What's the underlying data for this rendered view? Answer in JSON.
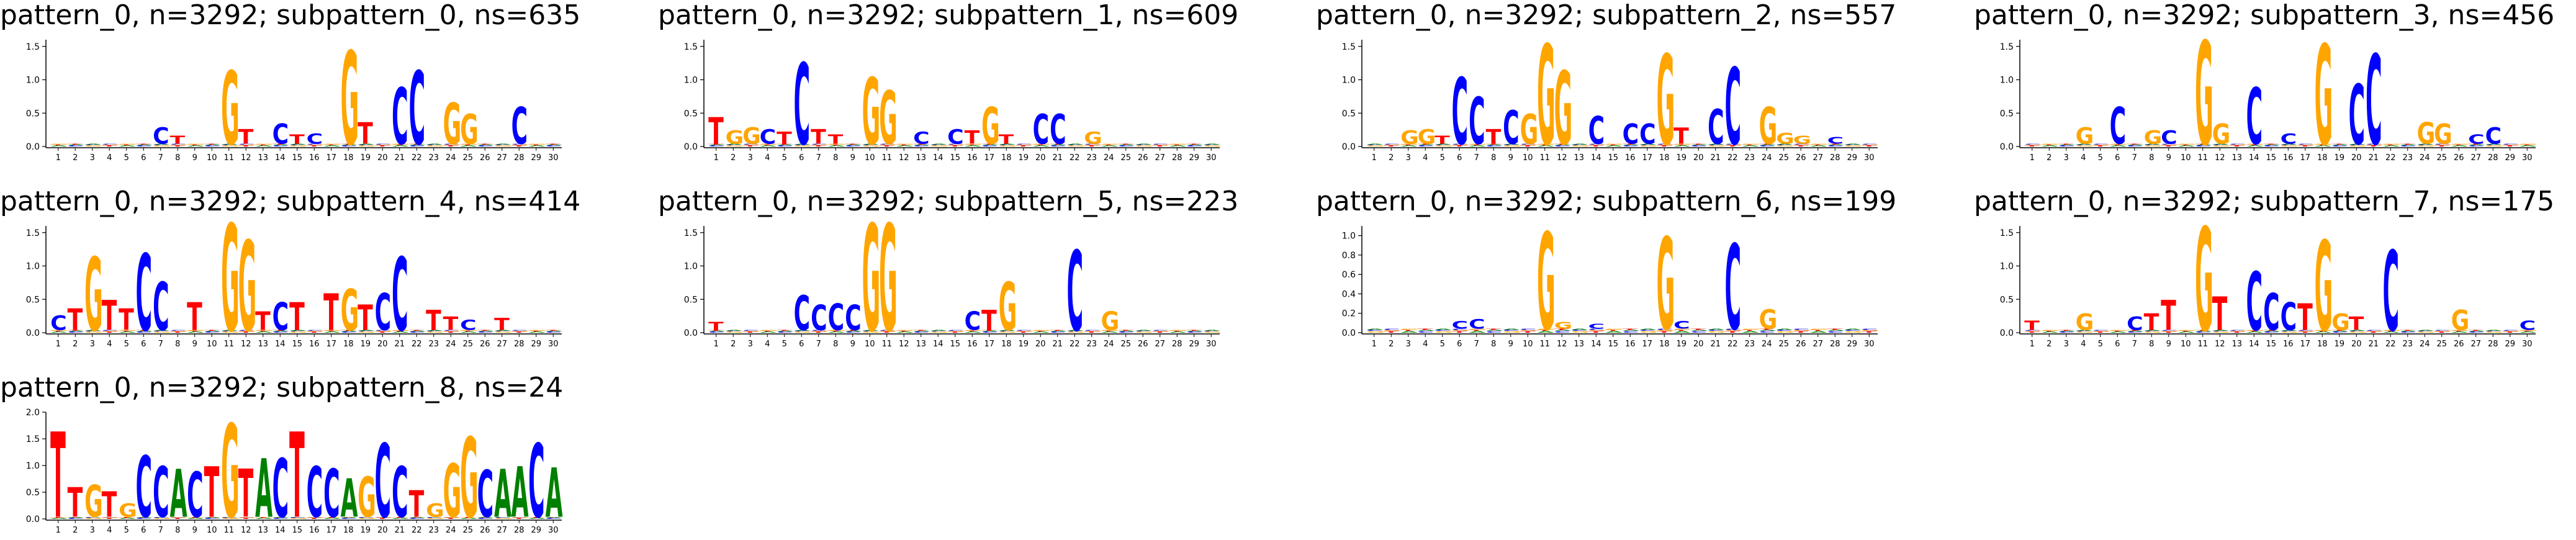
{
  "colors": {
    "A": "#008000",
    "C": "#0000ff",
    "G": "#ffa500",
    "T": "#ff0000"
  },
  "x_tick_labels": [
    "1",
    "2",
    "3",
    "4",
    "5",
    "6",
    "7",
    "8",
    "9",
    "10",
    "11",
    "12",
    "13",
    "14",
    "15",
    "16",
    "17",
    "18",
    "19",
    "20",
    "21",
    "22",
    "23",
    "24",
    "25",
    "26",
    "27",
    "28",
    "29",
    "30"
  ],
  "chart_data": [
    {
      "type": "sequence-logo",
      "title": "pattern_0, n=3292; subpattern_0, ns=635",
      "ylim": [
        0,
        1.6
      ],
      "yticks": [
        "0.0",
        "0.5",
        "1.0",
        "1.5"
      ],
      "letters": [
        null,
        null,
        null,
        null,
        null,
        null,
        [
          "C",
          0.25
        ],
        [
          "T",
          0.12
        ],
        null,
        null,
        [
          "G",
          1.1
        ],
        [
          "T",
          0.22
        ],
        null,
        [
          "C",
          0.3
        ],
        [
          "T",
          0.14
        ],
        [
          "C",
          0.15
        ],
        null,
        [
          "G",
          1.4
        ],
        [
          "T",
          0.32
        ],
        null,
        [
          "C",
          0.85
        ],
        [
          "C",
          1.1
        ],
        null,
        [
          "G",
          0.62
        ],
        [
          "G",
          0.45
        ],
        null,
        null,
        [
          "C",
          0.55
        ],
        null,
        null
      ]
    },
    {
      "type": "sequence-logo",
      "title": "pattern_0, n=3292; subpattern_1, ns=609",
      "ylim": [
        0,
        1.6
      ],
      "yticks": [
        "0.0",
        "0.5",
        "1.0",
        "1.5"
      ],
      "letters": [
        [
          "T",
          0.4
        ],
        [
          "G",
          0.2
        ],
        [
          "G",
          0.25
        ],
        [
          "C",
          0.22
        ],
        [
          "T",
          0.18
        ],
        [
          "C",
          1.22
        ],
        [
          "T",
          0.22
        ],
        [
          "T",
          0.14
        ],
        null,
        [
          "G",
          1.0
        ],
        [
          "G",
          0.8
        ],
        null,
        [
          "C",
          0.18
        ],
        null,
        [
          "C",
          0.22
        ],
        [
          "T",
          0.2
        ],
        [
          "G",
          0.55
        ],
        [
          "T",
          0.14
        ],
        null,
        [
          "C",
          0.45
        ],
        [
          "C",
          0.45
        ],
        null,
        [
          "G",
          0.18
        ],
        null,
        null,
        null,
        null,
        null,
        null,
        null
      ]
    },
    {
      "type": "sequence-logo",
      "title": "pattern_0, n=3292; subpattern_2, ns=557",
      "ylim": [
        0,
        1.6
      ],
      "yticks": [
        "0.0",
        "0.5",
        "1.0",
        "1.5"
      ],
      "letters": [
        null,
        null,
        [
          "G",
          0.2
        ],
        [
          "G",
          0.22
        ],
        [
          "T",
          0.12
        ],
        [
          "C",
          1.0
        ],
        [
          "C",
          0.7
        ],
        [
          "T",
          0.22
        ],
        [
          "C",
          0.5
        ],
        [
          "G",
          0.45
        ],
        [
          "G",
          1.5
        ],
        [
          "G",
          1.1
        ],
        null,
        [
          "C",
          0.42
        ],
        null,
        [
          "C",
          0.3
        ],
        [
          "C",
          0.3
        ],
        [
          "G",
          1.35
        ],
        [
          "T",
          0.24
        ],
        null,
        [
          "C",
          0.52
        ],
        [
          "C",
          1.15
        ],
        null,
        [
          "G",
          0.55
        ],
        [
          "G",
          0.16
        ],
        [
          "G",
          0.12
        ],
        null,
        [
          "C",
          0.1
        ],
        null,
        null
      ]
    },
    {
      "type": "sequence-logo",
      "title": "pattern_0, n=3292; subpattern_3, ns=456",
      "ylim": [
        0,
        1.6
      ],
      "yticks": [
        "0.0",
        "0.5",
        "1.0",
        "1.5"
      ],
      "letters": [
        null,
        null,
        null,
        [
          "G",
          0.25
        ],
        null,
        [
          "C",
          0.55
        ],
        null,
        [
          "G",
          0.2
        ],
        [
          "C",
          0.2
        ],
        null,
        [
          "G",
          1.55
        ],
        [
          "G",
          0.3
        ],
        null,
        [
          "C",
          0.85
        ],
        null,
        [
          "C",
          0.15
        ],
        null,
        [
          "G",
          1.5
        ],
        null,
        [
          "C",
          0.9
        ],
        [
          "C",
          1.35
        ],
        null,
        null,
        [
          "G",
          0.32
        ],
        [
          "G",
          0.3
        ],
        null,
        [
          "C",
          0.14
        ],
        [
          "C",
          0.25
        ],
        null,
        null
      ]
    },
    {
      "type": "sequence-logo",
      "title": "pattern_0, n=3292; subpattern_4, ns=414",
      "ylim": [
        0,
        1.6
      ],
      "yticks": [
        "0.0",
        "0.5",
        "1.0",
        "1.5"
      ],
      "letters": [
        [
          "C",
          0.22
        ],
        [
          "T",
          0.32
        ],
        [
          "G",
          1.1
        ],
        [
          "T",
          0.45
        ],
        [
          "T",
          0.32
        ],
        [
          "C",
          1.15
        ],
        [
          "C",
          0.72
        ],
        null,
        [
          "T",
          0.42
        ],
        null,
        [
          "G",
          1.6
        ],
        [
          "G",
          1.35
        ],
        [
          "T",
          0.28
        ],
        [
          "C",
          0.42
        ],
        [
          "T",
          0.42
        ],
        null,
        [
          "T",
          0.55
        ],
        [
          "G",
          0.62
        ],
        [
          "T",
          0.38
        ],
        [
          "C",
          0.55
        ],
        [
          "C",
          1.1
        ],
        null,
        [
          "T",
          0.3
        ],
        [
          "T",
          0.2
        ],
        [
          "C",
          0.15
        ],
        null,
        [
          "T",
          0.18
        ],
        null,
        null,
        null
      ]
    },
    {
      "type": "sequence-logo",
      "title": "pattern_0, n=3292; subpattern_5, ns=223",
      "ylim": [
        0,
        1.6
      ],
      "yticks": [
        "0.0",
        "0.5",
        "1.0",
        "1.5"
      ],
      "letters": [
        [
          "T",
          0.12
        ],
        null,
        null,
        null,
        null,
        [
          "C",
          0.52
        ],
        [
          "C",
          0.38
        ],
        [
          "C",
          0.4
        ],
        [
          "C",
          0.38
        ],
        [
          "G",
          1.6
        ],
        [
          "G",
          1.6
        ],
        null,
        null,
        null,
        null,
        [
          "C",
          0.28
        ],
        [
          "T",
          0.3
        ],
        [
          "G",
          0.72
        ],
        null,
        null,
        null,
        [
          "C",
          1.2
        ],
        null,
        [
          "G",
          0.28
        ],
        null,
        null,
        null,
        null,
        null,
        null
      ]
    },
    {
      "type": "sequence-logo",
      "title": "pattern_0, n=3292; subpattern_6, ns=199",
      "ylim": [
        0,
        1.1
      ],
      "yticks": [
        "0.0",
        "0.2",
        "0.4",
        "0.6",
        "0.8",
        "1.0"
      ],
      "letters": [
        null,
        null,
        null,
        null,
        null,
        [
          "C",
          0.08
        ],
        [
          "C",
          0.1
        ],
        null,
        null,
        null,
        [
          "G",
          1.0
        ],
        [
          "G",
          0.07
        ],
        null,
        [
          "C",
          0.05
        ],
        null,
        null,
        null,
        [
          "G",
          0.95
        ],
        [
          "C",
          0.08
        ],
        null,
        null,
        [
          "C",
          0.88
        ],
        null,
        [
          "G",
          0.2
        ],
        null,
        null,
        null,
        null,
        null,
        null
      ]
    },
    {
      "type": "sequence-logo",
      "title": "pattern_0, n=3292; subpattern_7, ns=175",
      "ylim": [
        0,
        1.6
      ],
      "yticks": [
        "0.0",
        "0.5",
        "1.0",
        "1.5"
      ],
      "letters": [
        [
          "T",
          0.14
        ],
        null,
        null,
        [
          "G",
          0.25
        ],
        null,
        null,
        [
          "C",
          0.2
        ],
        [
          "T",
          0.25
        ],
        [
          "T",
          0.45
        ],
        null,
        [
          "G",
          1.55
        ],
        [
          "T",
          0.5
        ],
        null,
        [
          "C",
          0.88
        ],
        [
          "C",
          0.55
        ],
        [
          "C",
          0.42
        ],
        [
          "T",
          0.4
        ],
        [
          "G",
          1.35
        ],
        [
          "G",
          0.25
        ],
        [
          "T",
          0.2
        ],
        null,
        [
          "C",
          1.2
        ],
        null,
        null,
        null,
        [
          "G",
          0.3
        ],
        null,
        null,
        null,
        [
          "C",
          0.14
        ]
      ]
    },
    {
      "type": "sequence-logo",
      "title": "pattern_0, n=3292; subpattern_8, ns=24",
      "ylim": [
        0,
        2.0
      ],
      "yticks": [
        "0.0",
        "0.5",
        "1.0",
        "1.5",
        "2.0"
      ],
      "letters": [
        [
          "T",
          1.6
        ],
        [
          "T",
          0.55
        ],
        [
          "G",
          0.6
        ],
        [
          "T",
          0.48
        ],
        [
          "G",
          0.25
        ],
        [
          "C",
          1.15
        ],
        [
          "C",
          0.95
        ],
        [
          "A",
          0.9
        ],
        [
          "C",
          0.85
        ],
        [
          "T",
          0.95
        ],
        [
          "G",
          1.75
        ],
        [
          "T",
          0.9
        ],
        [
          "A",
          1.1
        ],
        [
          "C",
          1.1
        ],
        [
          "T",
          1.6
        ],
        [
          "C",
          0.95
        ],
        [
          "C",
          0.9
        ],
        [
          "A",
          0.72
        ],
        [
          "G",
          0.75
        ],
        [
          "C",
          1.38
        ],
        [
          "C",
          0.95
        ],
        [
          "T",
          0.5
        ],
        [
          "G",
          0.25
        ],
        [
          "G",
          1.0
        ],
        [
          "G",
          1.5
        ],
        [
          "C",
          0.88
        ],
        [
          "A",
          0.9
        ],
        [
          "A",
          0.95
        ],
        [
          "C",
          1.38
        ],
        [
          "A",
          0.92
        ]
      ]
    }
  ]
}
